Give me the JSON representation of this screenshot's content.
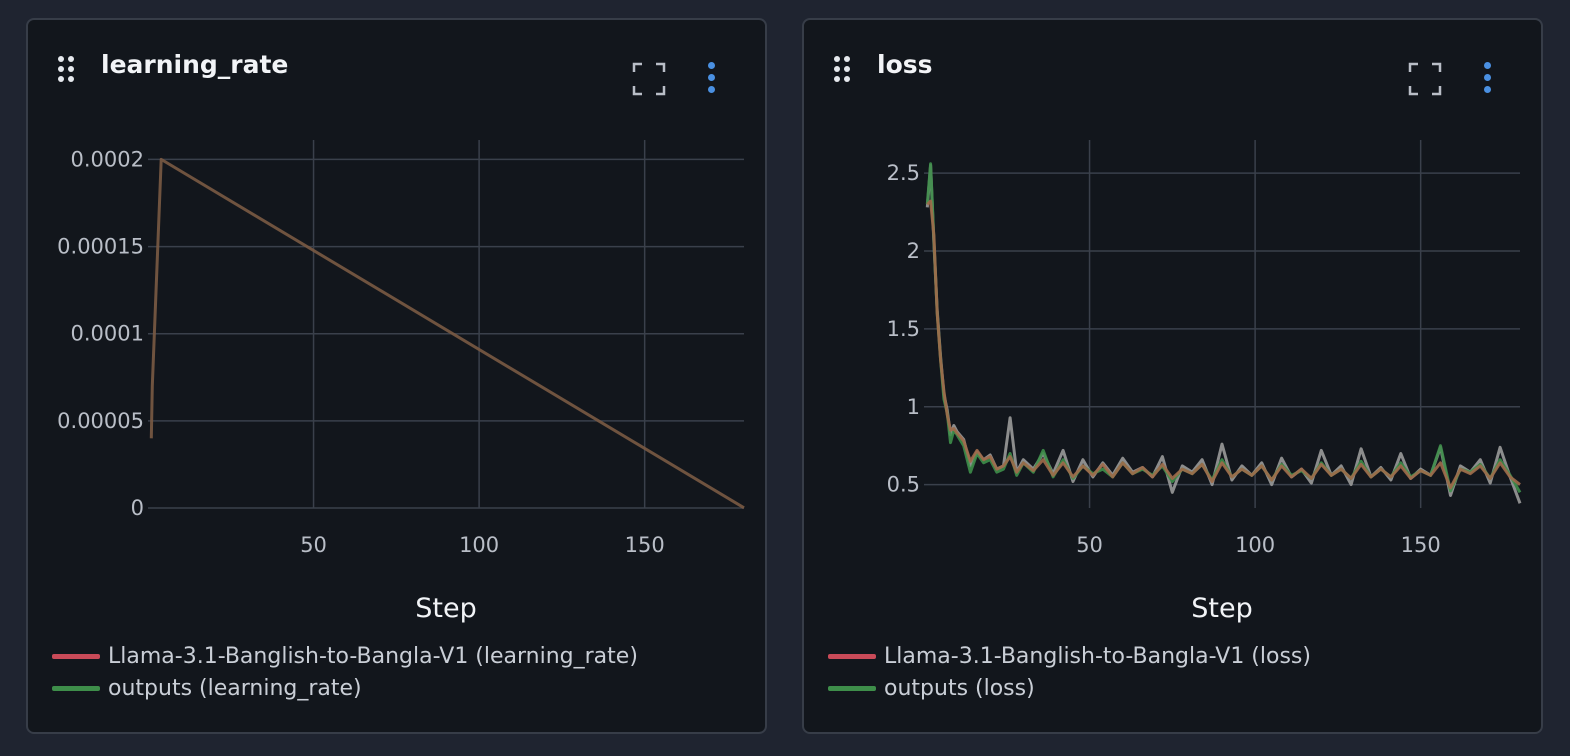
{
  "colors": {
    "series_a": "#c94a58",
    "series_b": "#3e8e4a",
    "series_c": "#a07a5c",
    "series_gray": "#9a9a9a",
    "line_main": "#7a5a44"
  },
  "panels": [
    {
      "title": "learning_rate",
      "legend": [
        {
          "label": "Llama-3.1-Banglish-to-Bangla-V1 (learning_rate)",
          "color": "#c94a58"
        },
        {
          "label": "outputs (learning_rate)",
          "color": "#3e8e4a"
        }
      ]
    },
    {
      "title": "loss",
      "legend": [
        {
          "label": "Llama-3.1-Banglish-to-Bangla-V1 (loss)",
          "color": "#c94a58"
        },
        {
          "label": "outputs (loss)",
          "color": "#3e8e4a"
        }
      ]
    }
  ],
  "chart_data": [
    {
      "type": "line",
      "xlabel": "Step",
      "xlim": [
        0,
        180
      ],
      "ylim": [
        0,
        0.00021
      ],
      "xticks": [
        "50",
        "100",
        "150"
      ],
      "xtick_values": [
        50,
        100,
        150
      ],
      "yticks": [
        "0",
        "0.00005",
        "0.0001",
        "0.00015",
        "0.0002"
      ],
      "ytick_values": [
        0,
        5e-05,
        0.0001,
        0.00015,
        0.0002
      ],
      "grid": true,
      "series": [
        {
          "x": [
            1,
            1.3,
            4,
            180
          ],
          "y": [
            4e-05,
            7e-05,
            0.0002,
            1e-07
          ],
          "color": "#7a5a44"
        }
      ]
    },
    {
      "type": "line",
      "xlabel": "Step",
      "xlim": [
        0,
        180
      ],
      "ylim": [
        0.35,
        2.7
      ],
      "xticks": [
        "50",
        "100",
        "150"
      ],
      "xtick_values": [
        50,
        100,
        150
      ],
      "yticks": [
        "0.5",
        "1",
        "1.5",
        "2",
        "2.5"
      ],
      "ytick_values": [
        0.5,
        1,
        1.5,
        2,
        2.5
      ],
      "grid": true,
      "series": [
        {
          "color": "#9a9a9a",
          "x": [
            1,
            2,
            3,
            4,
            5,
            6,
            7,
            8,
            9,
            10,
            12,
            14,
            16,
            18,
            20,
            22,
            24,
            26,
            28,
            30,
            33,
            36,
            39,
            42,
            45,
            48,
            51,
            54,
            57,
            60,
            63,
            66,
            69,
            72,
            75,
            78,
            81,
            84,
            87,
            90,
            93,
            96,
            99,
            102,
            105,
            108,
            111,
            114,
            117,
            120,
            123,
            126,
            129,
            132,
            135,
            138,
            141,
            144,
            147,
            150,
            153,
            156,
            159,
            162,
            165,
            168,
            171,
            174,
            177,
            180
          ],
          "y": [
            2.28,
            2.55,
            2.05,
            1.62,
            1.32,
            1.08,
            0.98,
            0.82,
            0.88,
            0.84,
            0.79,
            0.62,
            0.71,
            0.66,
            0.69,
            0.6,
            0.62,
            0.93,
            0.58,
            0.66,
            0.6,
            0.7,
            0.57,
            0.72,
            0.52,
            0.66,
            0.55,
            0.64,
            0.56,
            0.67,
            0.58,
            0.61,
            0.55,
            0.68,
            0.45,
            0.62,
            0.58,
            0.66,
            0.5,
            0.76,
            0.53,
            0.62,
            0.56,
            0.64,
            0.5,
            0.67,
            0.55,
            0.6,
            0.51,
            0.72,
            0.56,
            0.62,
            0.5,
            0.73,
            0.55,
            0.61,
            0.53,
            0.7,
            0.54,
            0.6,
            0.56,
            0.74,
            0.43,
            0.62,
            0.58,
            0.66,
            0.51,
            0.74,
            0.55,
            0.38
          ]
        },
        {
          "color": "#3e8e4a",
          "x": [
            1,
            2,
            3,
            4,
            5,
            6,
            7,
            8,
            9,
            10,
            12,
            14,
            16,
            18,
            20,
            22,
            24,
            26,
            28,
            30,
            33,
            36,
            39,
            42,
            45,
            48,
            51,
            54,
            57,
            60,
            63,
            66,
            69,
            72,
            75,
            78,
            81,
            84,
            87,
            90,
            93,
            96,
            99,
            102,
            105,
            108,
            111,
            114,
            117,
            120,
            123,
            126,
            129,
            132,
            135,
            138,
            141,
            144,
            147,
            150,
            153,
            156,
            159,
            162,
            165,
            168,
            171,
            174,
            177,
            180
          ],
          "y": [
            2.3,
            2.56,
            2.07,
            1.6,
            1.3,
            1.05,
            0.96,
            0.77,
            0.85,
            0.82,
            0.75,
            0.58,
            0.7,
            0.64,
            0.66,
            0.58,
            0.6,
            0.7,
            0.56,
            0.64,
            0.58,
            0.72,
            0.55,
            0.66,
            0.54,
            0.62,
            0.57,
            0.6,
            0.55,
            0.64,
            0.57,
            0.6,
            0.56,
            0.62,
            0.52,
            0.6,
            0.57,
            0.63,
            0.53,
            0.66,
            0.55,
            0.6,
            0.56,
            0.62,
            0.53,
            0.63,
            0.56,
            0.59,
            0.54,
            0.64,
            0.56,
            0.6,
            0.54,
            0.65,
            0.55,
            0.6,
            0.55,
            0.64,
            0.55,
            0.59,
            0.56,
            0.75,
            0.46,
            0.6,
            0.58,
            0.63,
            0.54,
            0.66,
            0.56,
            0.45
          ]
        },
        {
          "color": "#a06a4a",
          "x": [
            1,
            2,
            3,
            4,
            5,
            6,
            7,
            8,
            9,
            10,
            12,
            14,
            16,
            18,
            20,
            22,
            24,
            26,
            28,
            30,
            33,
            36,
            39,
            42,
            45,
            48,
            51,
            54,
            57,
            60,
            63,
            66,
            69,
            72,
            75,
            78,
            81,
            84,
            87,
            90,
            93,
            96,
            99,
            102,
            105,
            108,
            111,
            114,
            117,
            120,
            123,
            126,
            129,
            132,
            135,
            138,
            141,
            144,
            147,
            150,
            153,
            156,
            159,
            162,
            165,
            168,
            171,
            174,
            177,
            180
          ],
          "y": [
            2.3,
            2.32,
            2.1,
            1.6,
            1.3,
            1.1,
            0.95,
            0.85,
            0.86,
            0.83,
            0.78,
            0.65,
            0.72,
            0.66,
            0.68,
            0.6,
            0.62,
            0.68,
            0.58,
            0.64,
            0.59,
            0.66,
            0.56,
            0.64,
            0.55,
            0.62,
            0.56,
            0.63,
            0.55,
            0.64,
            0.57,
            0.61,
            0.55,
            0.63,
            0.54,
            0.6,
            0.57,
            0.63,
            0.52,
            0.64,
            0.55,
            0.6,
            0.56,
            0.62,
            0.53,
            0.62,
            0.55,
            0.6,
            0.54,
            0.63,
            0.56,
            0.6,
            0.54,
            0.63,
            0.55,
            0.6,
            0.55,
            0.62,
            0.54,
            0.59,
            0.56,
            0.64,
            0.48,
            0.6,
            0.57,
            0.62,
            0.54,
            0.64,
            0.55,
            0.5
          ]
        }
      ]
    }
  ]
}
